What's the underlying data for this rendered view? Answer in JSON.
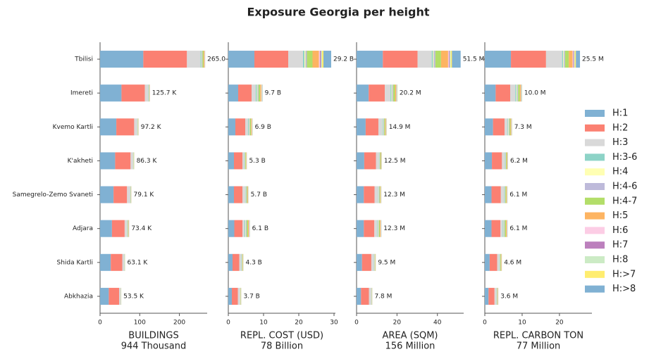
{
  "title": "Exposure Georgia per height",
  "chart_data": [
    {
      "type": "barh",
      "xlabel": "BUILDINGS",
      "xlabel_total": "944 Thousand",
      "categories": [
        "Tbilisi",
        "Imereti",
        "Kvemo Kartli",
        "K'akheti",
        "Samegrelo-Zemo Svaneti",
        "Adjara",
        "Shida Kartli",
        "Abkhazia"
      ],
      "xlim": [
        0,
        270
      ],
      "xticks": [
        0,
        100,
        200
      ],
      "total_labels": [
        "265.0 K",
        "125.7 K",
        "97.2 K",
        "86.3 K",
        "79.1 K",
        "73.4 K",
        "63.1 K",
        "53.5 K"
      ],
      "series": [
        {
          "name": "H:1",
          "color": "#80b1d3",
          "values": [
            109,
            54,
            41,
            38,
            34,
            30,
            27,
            22
          ]
        },
        {
          "name": "H:2",
          "color": "#fb8072",
          "values": [
            110,
            59,
            45,
            39,
            34,
            32,
            29,
            26
          ]
        },
        {
          "name": "H:3",
          "color": "#d9d9d9",
          "values": [
            34,
            9,
            8,
            6.5,
            8,
            6,
            5,
            4
          ]
        },
        {
          "name": "H:3-6",
          "color": "#8dd3c7",
          "values": [
            2,
            0.56,
            0.48,
            0.42,
            0.47,
            0.81,
            0.32,
            0.23
          ]
        },
        {
          "name": "H:4",
          "color": "#ffffb3",
          "values": [
            1,
            0.37,
            0.32,
            0.28,
            0.31,
            0.54,
            0.21,
            0.15
          ]
        },
        {
          "name": "H:4-6",
          "color": "#bebada",
          "values": [
            2,
            0.56,
            0.48,
            0.42,
            0.47,
            0.81,
            0.32,
            0.23
          ]
        },
        {
          "name": "H:4-7",
          "color": "#b3de69",
          "values": [
            3,
            0.93,
            0.8,
            0.7,
            0.78,
            1.35,
            0.53,
            0.38
          ]
        },
        {
          "name": "H:5",
          "color": "#fdb462",
          "values": [
            2,
            0.56,
            0.48,
            0.42,
            0.47,
            0.81,
            0.32,
            0.23
          ]
        },
        {
          "name": "H:6",
          "color": "#fccde5",
          "values": [
            0.5,
            0.11,
            0.1,
            0.08,
            0.09,
            0.16,
            0.06,
            0.05
          ]
        },
        {
          "name": "H:7",
          "color": "#bc80bd",
          "values": [
            0.5,
            0.11,
            0.1,
            0.08,
            0.09,
            0.16,
            0.06,
            0.05
          ]
        },
        {
          "name": "H:8",
          "color": "#ccebc5",
          "values": [
            0.5,
            0.22,
            0.19,
            0.17,
            0.19,
            0.32,
            0.13,
            0.09
          ]
        },
        {
          "name": "H:>7",
          "color": "#ffed6f",
          "values": [
            0.3,
            0.15,
            0.13,
            0.11,
            0.12,
            0.22,
            0.08,
            0.06
          ]
        },
        {
          "name": "H:>8",
          "color": "#80b1d3",
          "values": [
            0.2,
            0.15,
            0.13,
            0.11,
            0.12,
            0.22,
            0.08,
            0.06
          ]
        }
      ]
    },
    {
      "type": "barh",
      "xlabel": "REPL. COST (USD)",
      "xlabel_total": "78 Billion",
      "xlim": [
        0,
        30.4
      ],
      "xticks": [
        0,
        10,
        20,
        30
      ],
      "total_labels": [
        "29.2 B",
        "9.7 B",
        "6.9 B",
        "5.3 B",
        "5.7 B",
        "6.1 B",
        "4.3 B",
        "3.7 B"
      ],
      "series": [
        {
          "values": [
            7.4,
            2.8,
            2.0,
            1.6,
            1.6,
            1.7,
            1.2,
            1.0
          ]
        },
        {
          "values": [
            9.6,
            3.8,
            2.8,
            2.4,
            2.4,
            2.3,
            1.9,
            1.7
          ]
        },
        {
          "values": [
            4.2,
            1.2,
            0.8,
            0.5,
            0.8,
            0.6,
            0.6,
            0.6
          ]
        },
        {
          "values": [
            0.4,
            0.29,
            0.2,
            0.12,
            0.14,
            0.23,
            0.09,
            0.06
          ]
        },
        {
          "values": [
            0.3,
            0.19,
            0.13,
            0.08,
            0.09,
            0.15,
            0.06,
            0.04
          ]
        },
        {
          "values": [
            0.4,
            0.29,
            0.2,
            0.12,
            0.14,
            0.23,
            0.09,
            0.06
          ]
        },
        {
          "values": [
            1.6,
            0.48,
            0.33,
            0.2,
            0.23,
            0.38,
            0.15,
            0.1
          ]
        },
        {
          "values": [
            1.8,
            0.29,
            0.2,
            0.12,
            0.14,
            0.23,
            0.09,
            0.06
          ]
        },
        {
          "values": [
            0.3,
            0.06,
            0.04,
            0.02,
            0.03,
            0.05,
            0.02,
            0.01
          ]
        },
        {
          "values": [
            0.3,
            0.06,
            0.04,
            0.02,
            0.03,
            0.05,
            0.02,
            0.01
          ]
        },
        {
          "values": [
            0.3,
            0.11,
            0.08,
            0.05,
            0.05,
            0.09,
            0.04,
            0.02
          ]
        },
        {
          "values": [
            0.4,
            0.08,
            0.05,
            0.03,
            0.04,
            0.06,
            0.02,
            0.02
          ]
        },
        {
          "values": [
            2.2,
            0.08,
            0.05,
            0.03,
            0.04,
            0.06,
            0.02,
            0.02
          ]
        }
      ]
    },
    {
      "type": "barh",
      "xlabel": "AREA (SQM)",
      "xlabel_total": "156 Million",
      "xlim": [
        0,
        53
      ],
      "xticks": [
        0,
        20,
        40
      ],
      "total_labels": [
        "51.5 M",
        "20.2 M",
        "14.9 M",
        "12.5 M",
        "12.3 M",
        "12.3 M",
        "9.5 M",
        "7.8 M"
      ],
      "series": [
        {
          "values": [
            13,
            6,
            4.5,
            3.8,
            3.6,
            3.6,
            2.7,
            2.2
          ]
        },
        {
          "values": [
            17.2,
            8,
            6.3,
            5.8,
            5.3,
            5.2,
            4.6,
            3.9
          ]
        },
        {
          "values": [
            7,
            2.8,
            2,
            1.5,
            1.8,
            1.4,
            1.3,
            1.2
          ]
        },
        {
          "values": [
            0.6,
            0.51,
            0.32,
            0.21,
            0.24,
            0.32,
            0.14,
            0.08
          ]
        },
        {
          "values": [
            0.4,
            0.34,
            0.21,
            0.14,
            0.16,
            0.21,
            0.09,
            0.05
          ]
        },
        {
          "values": [
            0.8,
            0.51,
            0.32,
            0.21,
            0.24,
            0.32,
            0.14,
            0.08
          ]
        },
        {
          "values": [
            2.8,
            0.85,
            0.53,
            0.35,
            0.4,
            0.53,
            0.23,
            0.13
          ]
        },
        {
          "values": [
            3.5,
            0.51,
            0.32,
            0.21,
            0.24,
            0.32,
            0.14,
            0.08
          ]
        },
        {
          "values": [
            0.4,
            0.1,
            0.06,
            0.04,
            0.05,
            0.06,
            0.03,
            0.02
          ]
        },
        {
          "values": [
            0.4,
            0.1,
            0.06,
            0.04,
            0.05,
            0.06,
            0.03,
            0.02
          ]
        },
        {
          "values": [
            0.5,
            0.2,
            0.13,
            0.08,
            0.1,
            0.13,
            0.05,
            0.03
          ]
        },
        {
          "values": [
            0.6,
            0.14,
            0.08,
            0.06,
            0.06,
            0.08,
            0.04,
            0.02
          ]
        },
        {
          "values": [
            4.3,
            0.14,
            0.08,
            0.06,
            0.06,
            0.08,
            0.04,
            0.02
          ]
        }
      ]
    },
    {
      "type": "barh",
      "xlabel": "REPL. CARBON TON",
      "xlabel_total": "77 Million",
      "xlim": [
        0,
        28.7
      ],
      "xticks": [
        0,
        10,
        20
      ],
      "total_labels": [
        "25.5 M",
        "10.0 M",
        "7.3 M",
        "6.2 M",
        "6.1 M",
        "6.1 M",
        "4.6 M",
        "3.6 M"
      ],
      "series": [
        {
          "values": [
            7,
            2.9,
            2.2,
            1.9,
            1.8,
            1.8,
            1.3,
            1.0
          ]
        },
        {
          "values": [
            9.4,
            3.9,
            3.1,
            2.7,
            2.5,
            2.4,
            2.0,
            1.6
          ]
        },
        {
          "values": [
            4.3,
            1.4,
            0.8,
            0.7,
            0.8,
            0.6,
            0.5,
            0.5
          ]
        },
        {
          "values": [
            0.3,
            0.27,
            0.18,
            0.14,
            0.15,
            0.2,
            0.12,
            0.08
          ]
        },
        {
          "values": [
            0.2,
            0.18,
            0.12,
            0.09,
            0.1,
            0.13,
            0.08,
            0.05
          ]
        },
        {
          "values": [
            0.3,
            0.27,
            0.18,
            0.14,
            0.15,
            0.2,
            0.12,
            0.08
          ]
        },
        {
          "values": [
            1.0,
            0.45,
            0.3,
            0.23,
            0.25,
            0.33,
            0.2,
            0.13
          ]
        },
        {
          "values": [
            1.0,
            0.27,
            0.18,
            0.14,
            0.15,
            0.2,
            0.12,
            0.08
          ]
        },
        {
          "values": [
            0.2,
            0.05,
            0.04,
            0.03,
            0.03,
            0.04,
            0.02,
            0.02
          ]
        },
        {
          "values": [
            0.2,
            0.05,
            0.04,
            0.03,
            0.03,
            0.04,
            0.02,
            0.02
          ]
        },
        {
          "values": [
            0.2,
            0.11,
            0.07,
            0.05,
            0.06,
            0.08,
            0.05,
            0.03
          ]
        },
        {
          "values": [
            0.3,
            0.07,
            0.05,
            0.04,
            0.04,
            0.05,
            0.02,
            0.02
          ]
        },
        {
          "values": [
            1.1,
            0.07,
            0.05,
            0.04,
            0.04,
            0.05,
            0.02,
            0.02
          ]
        }
      ]
    }
  ]
}
